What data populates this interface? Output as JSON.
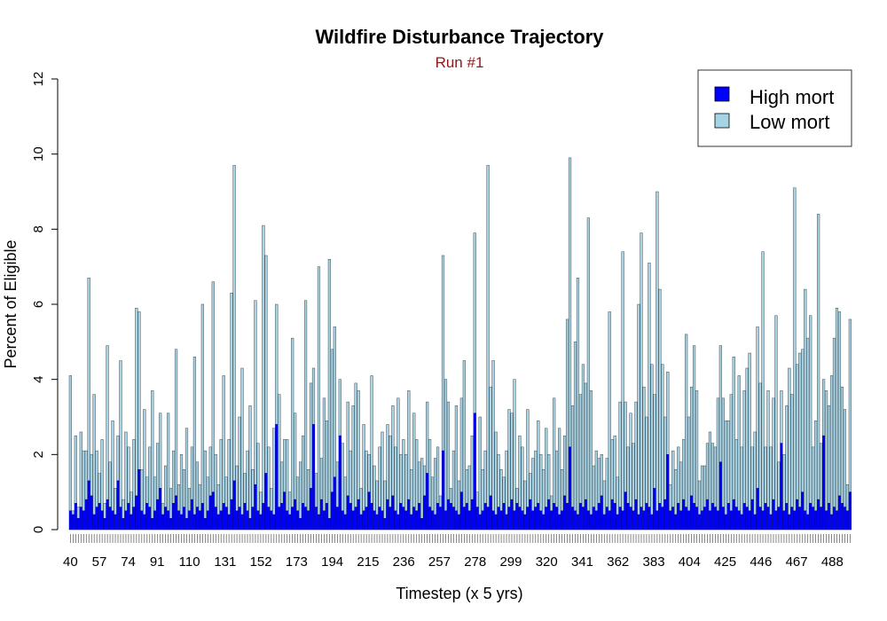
{
  "chart_data": {
    "type": "bar",
    "stacked": true,
    "title": "Wildfire Disturbance Trajectory",
    "subtitle": "Run #1",
    "xlabel": "Timestep (x 5  yrs)",
    "ylabel": "Percent of Eligible",
    "x_start": 40,
    "x_end": 500,
    "x_tick_labels": [
      "40",
      "57",
      "74",
      "91",
      "110",
      "131",
      "152",
      "173",
      "194",
      "215",
      "236",
      "257",
      "278",
      "299",
      "320",
      "341",
      "362",
      "383",
      "404",
      "425",
      "446",
      "467",
      "488"
    ],
    "y_ticks": [
      "0",
      "2",
      "4",
      "6",
      "8",
      "10",
      "12"
    ],
    "ylim": [
      0,
      12.2
    ],
    "legend_position": "top-right",
    "series": [
      {
        "name": "High mort",
        "color": "#0000ff",
        "values": [
          0.5,
          0.4,
          0.7,
          0.3,
          0.6,
          0.5,
          0.8,
          1.3,
          0.9,
          0.4,
          0.6,
          0.7,
          0.5,
          0.3,
          0.8,
          0.6,
          0.5,
          0.4,
          1.3,
          0.6,
          0.3,
          0.5,
          0.7,
          0.4,
          0.6,
          0.9,
          1.6,
          0.5,
          0.4,
          0.7,
          0.6,
          0.3,
          0.5,
          0.8,
          1.1,
          0.4,
          0.6,
          0.5,
          0.3,
          0.7,
          0.9,
          0.5,
          0.4,
          0.6,
          0.3,
          0.5,
          0.8,
          0.4,
          0.6,
          0.5,
          0.7,
          0.3,
          0.5,
          0.9,
          1.0,
          0.6,
          0.4,
          0.5,
          0.7,
          0.6,
          0.4,
          0.8,
          1.3,
          0.5,
          0.6,
          0.4,
          0.7,
          0.5,
          0.3,
          0.6,
          1.2,
          0.5,
          0.4,
          0.7,
          1.5,
          0.6,
          0.5,
          0.4,
          2.8,
          0.6,
          0.7,
          1.0,
          0.5,
          0.4,
          0.6,
          0.8,
          0.5,
          0.3,
          0.7,
          0.6,
          0.5,
          1.1,
          2.8,
          0.6,
          0.4,
          0.8,
          0.5,
          0.7,
          0.3,
          1.0,
          1.4,
          0.6,
          2.5,
          0.5,
          0.4,
          0.9,
          0.7,
          0.5,
          0.6,
          0.8,
          0.4,
          0.5,
          0.6,
          1.0,
          0.7,
          0.5,
          0.4,
          0.6,
          0.5,
          0.3,
          0.8,
          0.6,
          0.9,
          0.5,
          0.4,
          0.7,
          0.6,
          0.5,
          0.8,
          0.4,
          0.6,
          0.5,
          0.7,
          0.3,
          0.9,
          1.5,
          0.6,
          0.5,
          0.4,
          0.7,
          0.6,
          2.1,
          0.5,
          0.8,
          0.7,
          0.6,
          0.5,
          0.4,
          1.0,
          0.6,
          0.7,
          0.5,
          0.8,
          3.1,
          0.6,
          0.4,
          0.5,
          0.7,
          0.6,
          0.9,
          0.5,
          0.4,
          0.6,
          0.5,
          0.7,
          0.4,
          0.6,
          0.8,
          0.5,
          0.7,
          0.6,
          0.5,
          0.4,
          0.6,
          0.8,
          0.5,
          0.6,
          0.7,
          0.5,
          0.4,
          0.6,
          0.8,
          0.5,
          0.7,
          0.6,
          0.4,
          0.5,
          0.9,
          0.7,
          2.2,
          0.6,
          0.5,
          0.4,
          0.7,
          0.6,
          0.8,
          0.5,
          0.4,
          0.6,
          0.5,
          0.7,
          0.9,
          0.4,
          0.6,
          0.5,
          0.8,
          0.7,
          0.4,
          0.6,
          0.5,
          1.0,
          0.7,
          0.6,
          0.5,
          0.8,
          0.4,
          0.6,
          0.5,
          0.7,
          0.6,
          0.4,
          1.1,
          0.5,
          0.7,
          0.6,
          0.8,
          2.0,
          0.5,
          0.6,
          0.4,
          0.7,
          0.5,
          0.8,
          0.6,
          0.5,
          0.9,
          0.7,
          0.6,
          0.4,
          0.5,
          0.6,
          0.8,
          0.5,
          0.7,
          0.6,
          0.5,
          1.8,
          0.6,
          0.4,
          0.7,
          0.5,
          0.8,
          0.6,
          0.5,
          0.4,
          0.7,
          0.6,
          0.5,
          0.8,
          0.4,
          1.1,
          0.6,
          0.5,
          0.7,
          0.6,
          0.4,
          0.8,
          0.5,
          0.6,
          2.3,
          0.5,
          0.7,
          0.4,
          0.6,
          0.5,
          0.8,
          0.6,
          1.0,
          0.5,
          0.4,
          0.7,
          0.6,
          0.5,
          0.8,
          0.6,
          2.5,
          0.5,
          0.7,
          0.4,
          0.6,
          0.5,
          0.9,
          0.7,
          0.6,
          0.5,
          1.0
        ]
      },
      {
        "name": "Low mort",
        "color": "#a6d4e6",
        "values": [
          3.6,
          0.1,
          1.8,
          0.3,
          2.0,
          1.6,
          1.3,
          5.4,
          1.1,
          3.2,
          1.5,
          0.8,
          1.9,
          0.4,
          4.1,
          1.2,
          2.4,
          0.7,
          1.2,
          3.9,
          0.5,
          2.1,
          1.5,
          0.6,
          1.8,
          5.0,
          4.2,
          1.1,
          2.8,
          0.7,
          1.6,
          3.4,
          0.9,
          1.5,
          2.0,
          0.3,
          1.1,
          2.6,
          0.8,
          1.4,
          3.9,
          0.7,
          1.6,
          1.0,
          2.4,
          0.6,
          1.4,
          4.2,
          1.2,
          0.7,
          5.3,
          1.8,
          0.9,
          1.3,
          5.6,
          1.4,
          0.8,
          1.9,
          3.4,
          0.8,
          2.0,
          5.5,
          8.4,
          1.2,
          2.4,
          3.9,
          0.8,
          1.6,
          3.0,
          1.0,
          4.9,
          1.8,
          0.6,
          7.4,
          5.8,
          1.6,
          0.6,
          2.3,
          3.2,
          3.0,
          1.1,
          1.4,
          1.9,
          0.6,
          4.5,
          2.3,
          0.9,
          1.5,
          1.8,
          5.5,
          1.1,
          2.8,
          1.5,
          0.9,
          6.6,
          1.1,
          3.0,
          2.2,
          6.9,
          3.8,
          4.0,
          1.2,
          1.5,
          1.8,
          1.0,
          2.5,
          1.4,
          2.8,
          3.3,
          2.9,
          0.7,
          2.3,
          1.5,
          1.0,
          3.4,
          1.2,
          0.9,
          1.6,
          2.1,
          1.0,
          2.0,
          1.9,
          2.4,
          1.7,
          3.1,
          1.3,
          1.8,
          1.5,
          2.9,
          1.2,
          2.5,
          1.9,
          1.1,
          1.6,
          0.8,
          1.9,
          1.8,
          0.9,
          1.5,
          1.5,
          0.3,
          5.2,
          3.5,
          2.6,
          0.4,
          1.5,
          2.8,
          0.9,
          2.5,
          3.9,
          0.9,
          1.2,
          1.7,
          4.8,
          0.4,
          2.6,
          1.1,
          1.4,
          9.1,
          2.9,
          4.0,
          2.2,
          1.4,
          1.1,
          0.7,
          1.7,
          2.6,
          2.3,
          3.5,
          0.4,
          1.9,
          1.7,
          0.9,
          2.6,
          0.7,
          1.4,
          1.5,
          2.2,
          1.5,
          1.2,
          2.1,
          1.2,
          0.4,
          2.8,
          1.5,
          2.3,
          1.1,
          1.6,
          4.9,
          7.7,
          2.7,
          4.5,
          6.3,
          2.9,
          3.8,
          3.1,
          7.8,
          3.3,
          1.1,
          1.6,
          1.2,
          1.1,
          0.9,
          1.3,
          5.3,
          1.6,
          1.8,
          1.0,
          2.8,
          6.9,
          2.4,
          1.5,
          2.5,
          1.8,
          2.6,
          5.6,
          7.3,
          3.3,
          2.3,
          6.5,
          4.0,
          2.5,
          8.5,
          5.7,
          3.8,
          2.2,
          2.2,
          0.7,
          1.5,
          1.2,
          1.5,
          1.3,
          1.6,
          4.6,
          2.5,
          2.9,
          4.2,
          3.1,
          0.9,
          1.2,
          1.1,
          1.5,
          2.1,
          1.6,
          1.6,
          3.0,
          3.1,
          2.9,
          2.5,
          2.2,
          3.1,
          3.8,
          1.8,
          3.6,
          1.8,
          3.0,
          3.7,
          4.2,
          1.4,
          2.2,
          4.3,
          3.3,
          6.9,
          1.5,
          3.1,
          1.8,
          2.7,
          5.2,
          1.2,
          1.4,
          1.5,
          2.6,
          3.9,
          3.0,
          8.6,
          3.6,
          4.1,
          3.8,
          5.9,
          4.7,
          5.0,
          1.6,
          2.4,
          7.6,
          1.7,
          1.5,
          3.2,
          2.6,
          3.7,
          4.5,
          5.4,
          4.9,
          3.1,
          2.6,
          0.7,
          4.6,
          3.4
        ]
      }
    ]
  }
}
